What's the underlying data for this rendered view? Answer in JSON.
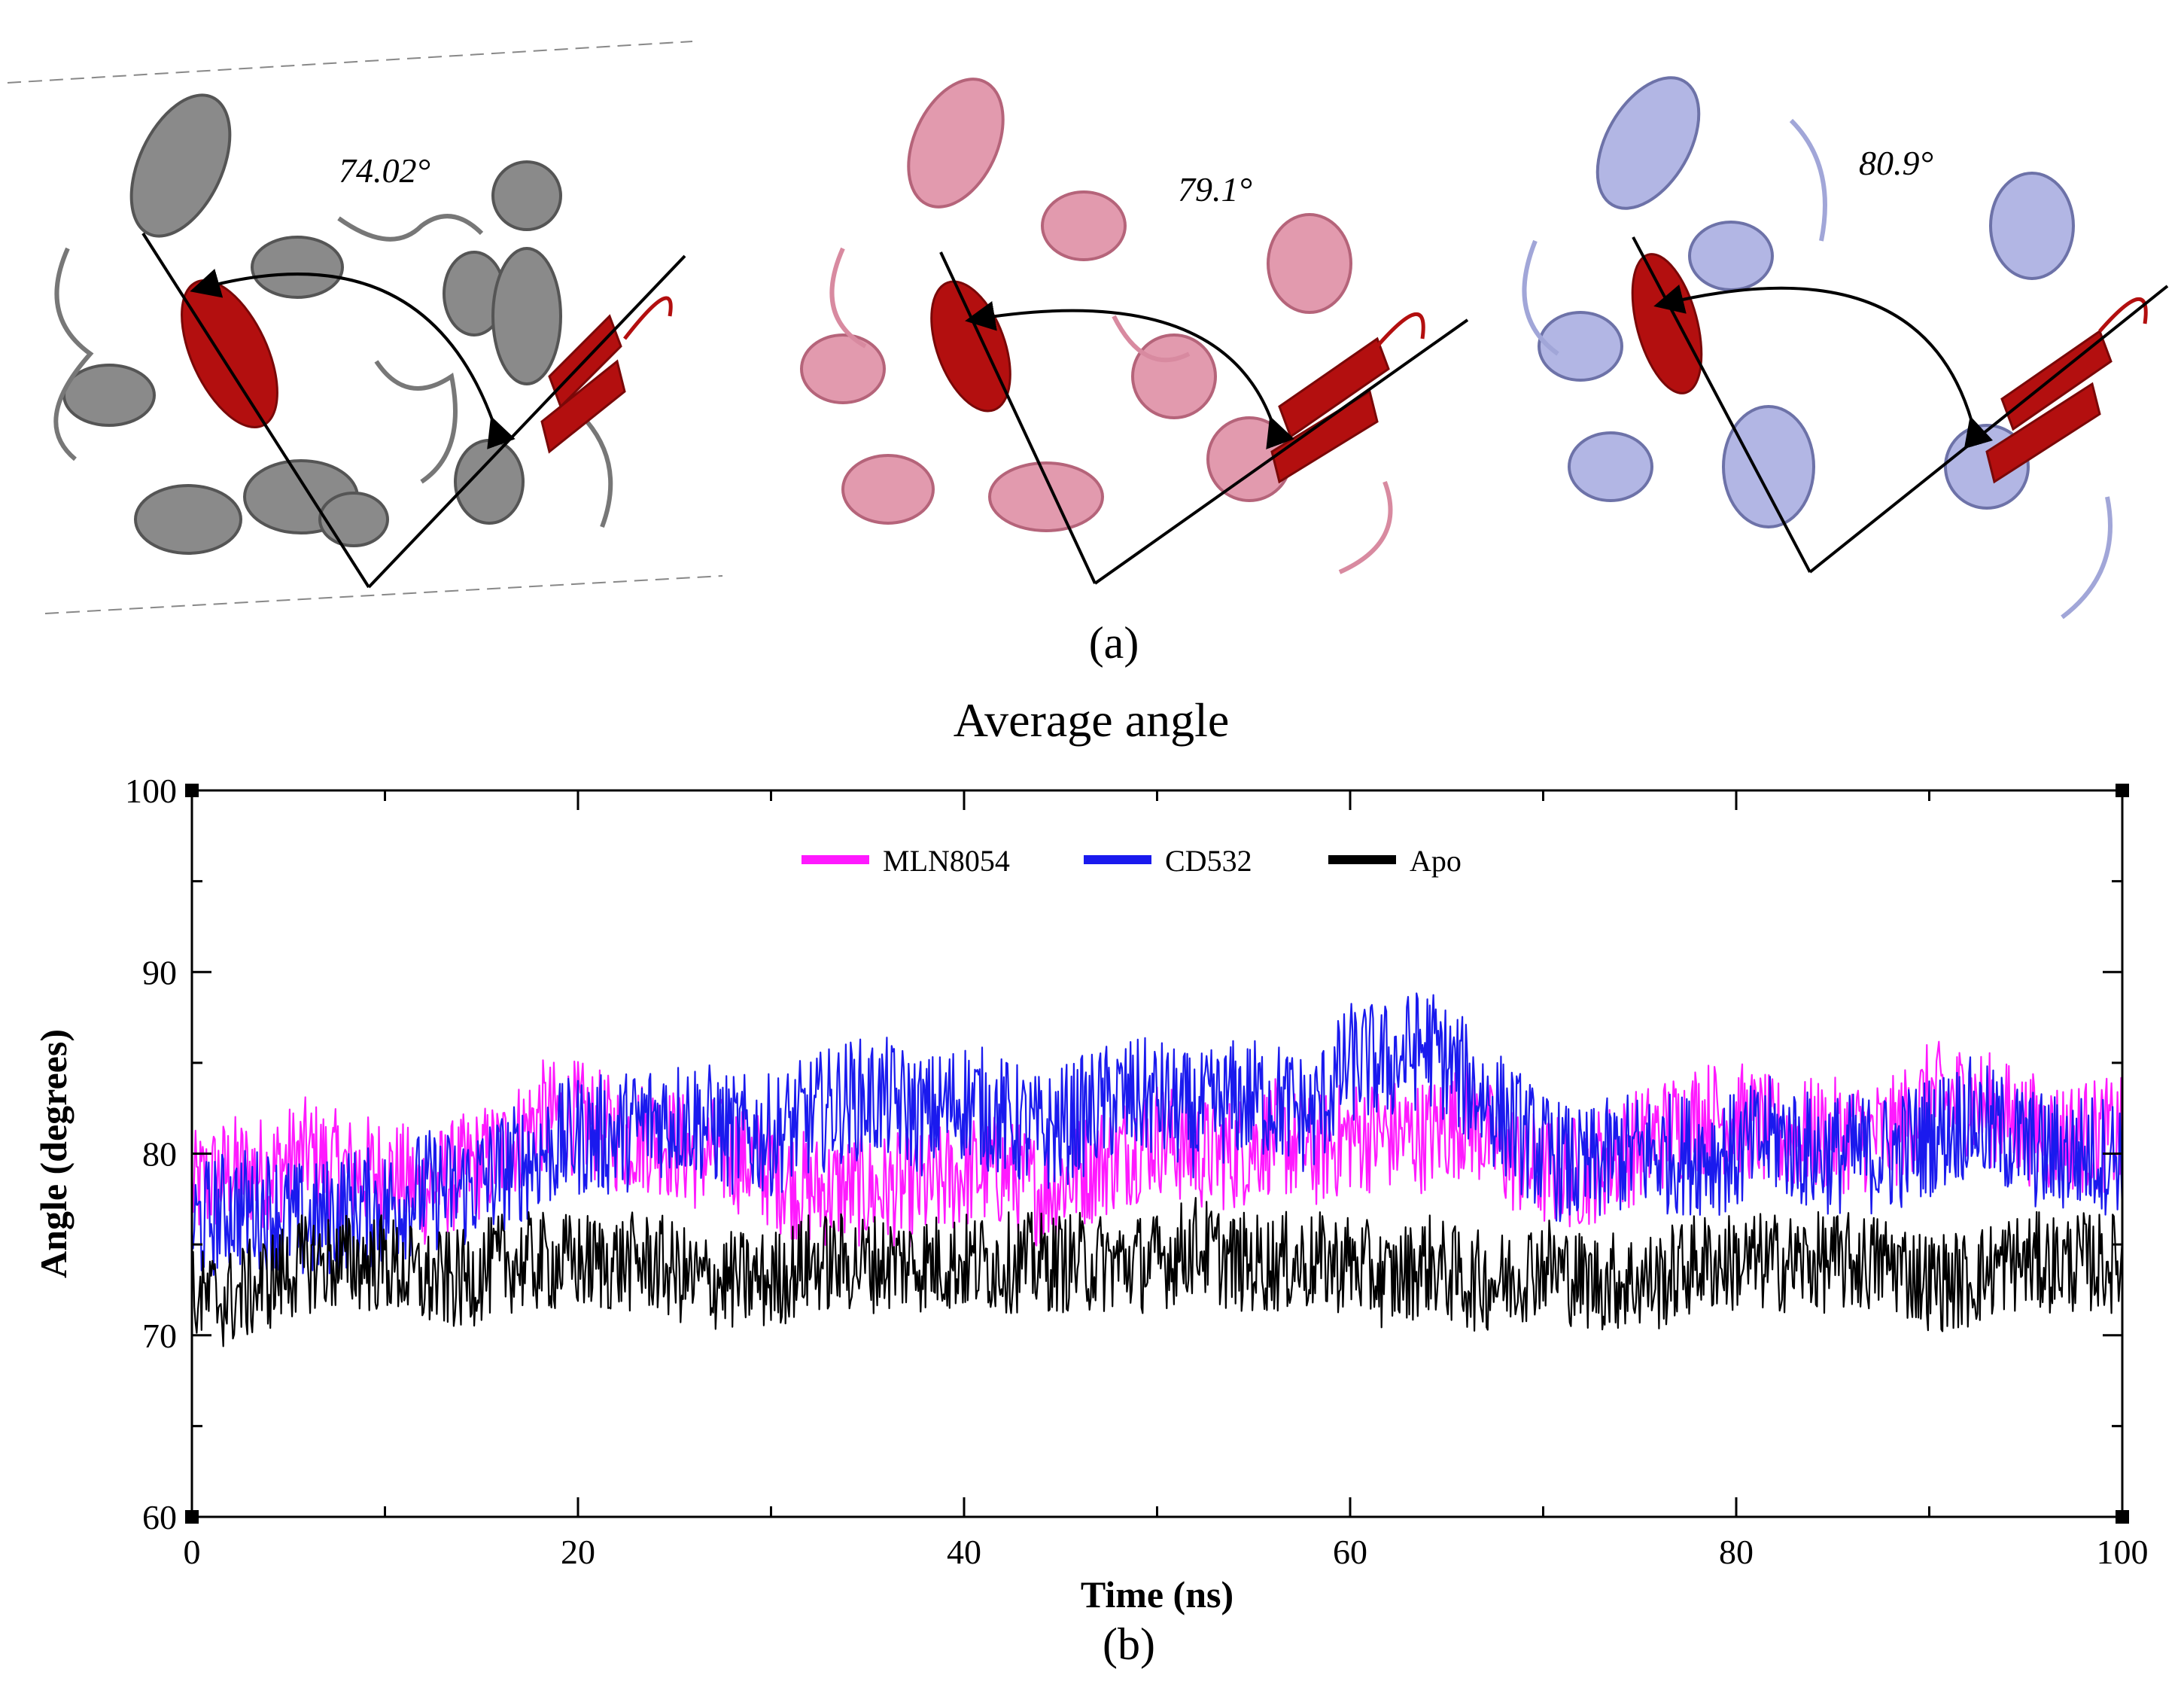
{
  "panel_a": {
    "caption": "(a)",
    "structures": [
      {
        "label": "74.02°",
        "color": "#8a8a8a",
        "highlight": "#b30f0f"
      },
      {
        "label": "79.1°",
        "color": "#e29aae",
        "highlight": "#b30f0f"
      },
      {
        "label": "80.9°",
        "color": "#b2b6e4",
        "highlight": "#b30f0f"
      }
    ]
  },
  "panel_b": {
    "caption": "(b)"
  },
  "chart_data": {
    "type": "line",
    "title": "Average angle",
    "xlabel": "Time (ns)",
    "ylabel": "Angle (degrees)",
    "xlim": [
      0,
      100
    ],
    "ylim": [
      60,
      100
    ],
    "xticks": [
      0,
      20,
      40,
      60,
      80,
      100
    ],
    "yticks": [
      60,
      70,
      80,
      90,
      100
    ],
    "legend_position": "top-center",
    "x": [
      0,
      2,
      4,
      6,
      8,
      10,
      12,
      14,
      16,
      18,
      20,
      22,
      24,
      26,
      28,
      30,
      32,
      34,
      36,
      38,
      40,
      42,
      44,
      46,
      48,
      50,
      52,
      54,
      56,
      58,
      60,
      62,
      64,
      66,
      68,
      70,
      72,
      74,
      76,
      78,
      80,
      82,
      84,
      86,
      88,
      90,
      92,
      94,
      96,
      98,
      100
    ],
    "series": [
      {
        "name": "MLN8054",
        "color": "#ff19ff",
        "values": [
          78,
          79,
          79,
          80,
          79,
          79,
          78,
          79,
          80,
          82,
          82,
          81,
          81,
          80,
          80,
          79,
          78,
          78,
          78,
          78,
          79,
          79,
          78,
          79,
          80,
          81,
          80,
          80,
          81,
          80,
          81,
          81,
          81,
          82,
          80,
          79,
          79,
          80,
          81,
          82,
          82,
          81,
          81,
          81,
          81,
          83,
          83,
          82,
          81,
          81,
          81
        ]
      },
      {
        "name": "CD532",
        "color": "#1a1aee",
        "values": [
          76,
          77,
          77,
          76,
          77,
          77,
          78,
          78,
          79,
          80,
          81,
          81,
          82,
          82,
          81,
          81,
          82,
          83,
          83,
          82,
          83,
          82,
          81,
          82,
          83,
          83,
          82,
          83,
          83,
          82,
          85,
          85,
          86,
          84,
          82,
          80,
          79,
          80,
          80,
          80,
          80,
          81,
          80,
          80,
          80,
          81,
          82,
          81,
          80,
          80,
          80
        ]
      },
      {
        "name": "Apo",
        "color": "#000000",
        "values": [
          72,
          72,
          73,
          74,
          74,
          74,
          73,
          73,
          74,
          74,
          74,
          74,
          74,
          73,
          73,
          73,
          74,
          74,
          74,
          74,
          74,
          74,
          74,
          74,
          74,
          74,
          75,
          74,
          74,
          74,
          74,
          73,
          74,
          73,
          73,
          74,
          73,
          73,
          73,
          74,
          74,
          74,
          74,
          74,
          74,
          73,
          73,
          74,
          74,
          74,
          74
        ]
      }
    ]
  }
}
